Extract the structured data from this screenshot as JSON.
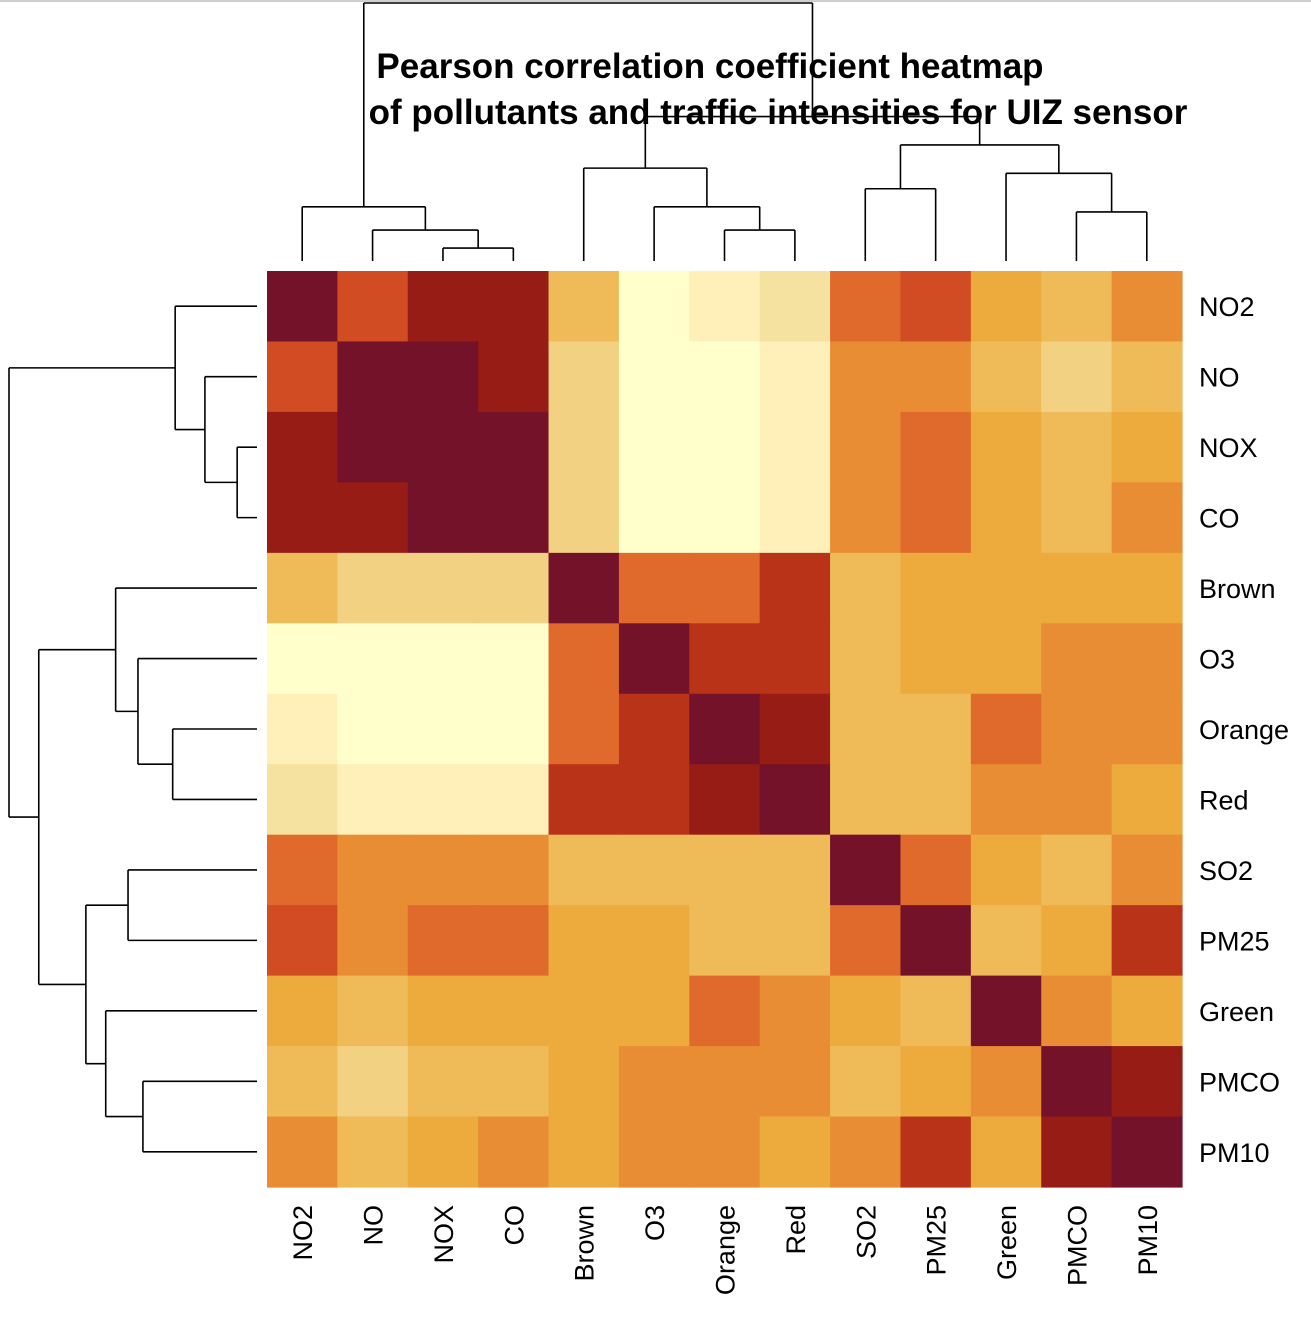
{
  "chart_data": {
    "type": "heatmap",
    "title_lines": [
      "Pearson correlation coefficient heatmap",
      "of pollutants and traffic intensities for UIZ sensor"
    ],
    "rows": [
      "NO2",
      "NO",
      "NOX",
      "CO",
      "Brown",
      "O3",
      "Orange",
      "Red",
      "SO2",
      "PM25",
      "Green",
      "PMCO",
      "PM10"
    ],
    "columns": [
      "NO2",
      "NO",
      "NOX",
      "CO",
      "Brown",
      "O3",
      "Orange",
      "Red",
      "SO2",
      "PM25",
      "Green",
      "PMCO",
      "PM10"
    ],
    "color_scale": {
      "low": "#ffffcc",
      "stops": [
        "#ffffcc",
        "#fef0b8",
        "#f5e2a0",
        "#f2d183",
        "#efbb59",
        "#eeab3d",
        "#e88d33",
        "#e06a2c",
        "#d14b23",
        "#b83318",
        "#961c15",
        "#74122a"
      ],
      "high": "#74122a"
    },
    "values": [
      [
        12,
        8,
        10,
        10,
        4,
        0,
        1,
        2,
        7,
        8,
        5,
        4,
        6
      ],
      [
        8,
        12,
        12,
        10,
        3,
        0,
        0,
        1,
        6,
        6,
        4,
        3,
        4
      ],
      [
        10,
        12,
        12,
        12,
        3,
        0,
        0,
        1,
        6,
        7,
        5,
        4,
        5
      ],
      [
        10,
        10,
        12,
        12,
        3,
        0,
        0,
        1,
        6,
        7,
        5,
        4,
        6
      ],
      [
        4,
        3,
        3,
        3,
        12,
        7,
        7,
        9,
        4,
        5,
        5,
        5,
        5
      ],
      [
        0,
        0,
        0,
        0,
        7,
        12,
        9,
        9,
        4,
        5,
        5,
        6,
        6
      ],
      [
        1,
        0,
        0,
        0,
        7,
        9,
        12,
        10,
        4,
        4,
        7,
        6,
        6
      ],
      [
        2,
        1,
        1,
        1,
        9,
        9,
        10,
        12,
        4,
        4,
        6,
        6,
        5
      ],
      [
        7,
        6,
        6,
        6,
        4,
        4,
        4,
        4,
        12,
        7,
        5,
        4,
        6
      ],
      [
        8,
        6,
        7,
        7,
        5,
        5,
        4,
        4,
        7,
        12,
        4,
        5,
        9
      ],
      [
        5,
        4,
        5,
        5,
        5,
        5,
        7,
        6,
        5,
        4,
        12,
        6,
        5
      ],
      [
        4,
        3,
        4,
        4,
        5,
        6,
        6,
        6,
        4,
        5,
        6,
        12,
        10
      ],
      [
        6,
        4,
        5,
        6,
        5,
        6,
        6,
        5,
        6,
        9,
        5,
        10,
        12
      ]
    ],
    "row_dendrogram": [
      [
        2,
        3,
        0.08
      ],
      [
        1,
        -1,
        0.21
      ],
      [
        0,
        -2,
        0.33
      ],
      [
        6,
        7,
        0.34
      ],
      [
        5,
        -4,
        0.48
      ],
      [
        4,
        -5,
        0.57
      ],
      [
        8,
        9,
        0.52
      ],
      [
        11,
        12,
        0.46
      ],
      [
        10,
        -8,
        0.61
      ],
      [
        -7,
        -9,
        0.69
      ],
      [
        -6,
        -10,
        0.88
      ],
      [
        -3,
        -11,
        1.0
      ]
    ],
    "column_dendrogram": [
      [
        2,
        3,
        0.05
      ],
      [
        1,
        -1,
        0.12
      ],
      [
        0,
        -2,
        0.21
      ],
      [
        6,
        7,
        0.12
      ],
      [
        5,
        -4,
        0.21
      ],
      [
        4,
        -5,
        0.36
      ],
      [
        8,
        9,
        0.28
      ],
      [
        11,
        12,
        0.19
      ],
      [
        10,
        -8,
        0.34
      ],
      [
        -7,
        -9,
        0.45
      ],
      [
        -6,
        -10,
        0.56
      ],
      [
        -3,
        -11,
        1.0
      ]
    ],
    "legend": "none",
    "grid": false
  }
}
